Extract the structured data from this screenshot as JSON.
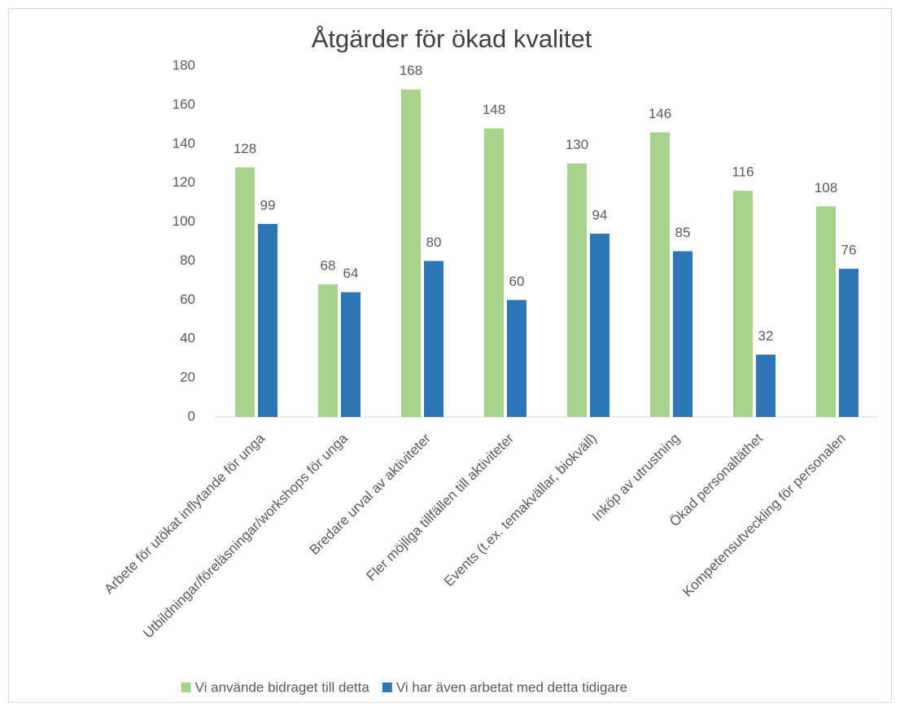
{
  "chart_data": {
    "type": "bar",
    "title": "Åtgärder för ökad kvalitet",
    "categories": [
      "Arbete för utökat inflytande för unga",
      "Utbildningar/föreläsningar/workshops för unga",
      "Bredare urval av aktiviteter",
      "Fler möjliga tillfällen till aktiviteter",
      "Events (t.ex. temakvällar, biokväll)",
      "Inköp av utrustning",
      "Ökad personaltäthet",
      "Kompetensutveckling för personalen"
    ],
    "series": [
      {
        "name": "Vi använde bidraget till detta",
        "color": "#a9d18e",
        "values": [
          128,
          68,
          168,
          148,
          130,
          146,
          116,
          108
        ]
      },
      {
        "name": "Vi har även arbetat med detta tidigare",
        "color": "#2e75b6",
        "values": [
          99,
          64,
          80,
          60,
          94,
          85,
          32,
          76
        ]
      }
    ],
    "ylim": [
      0,
      180
    ],
    "yticks": [
      0,
      20,
      40,
      60,
      80,
      100,
      120,
      140,
      160,
      180
    ],
    "grid": false,
    "legend": "bottom"
  }
}
